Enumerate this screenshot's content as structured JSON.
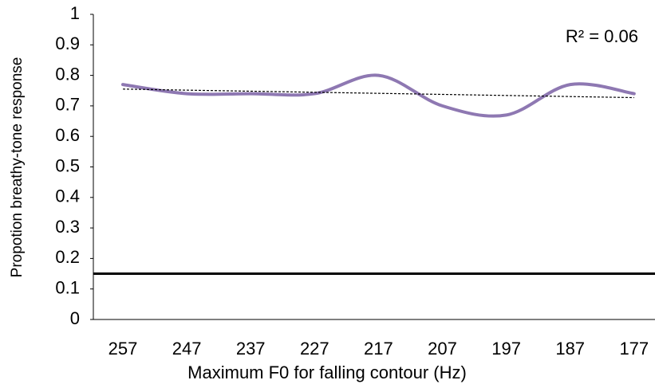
{
  "chart_data": {
    "type": "line",
    "categories": [
      "257",
      "247",
      "237",
      "227",
      "217",
      "207",
      "197",
      "187",
      "177"
    ],
    "series": [
      {
        "name": "Propotion breathy-tone response",
        "color": "#8e78b2",
        "values": [
          0.77,
          0.74,
          0.74,
          0.74,
          0.8,
          0.7,
          0.67,
          0.77,
          0.74
        ]
      }
    ],
    "x_label": "Maximum F0 for falling contour (Hz)",
    "y_label": "Propotion breathy-tone response",
    "ylim": [
      0,
      1
    ],
    "yticks": [
      0,
      0.1,
      0.2,
      0.3,
      0.4,
      0.5,
      0.6,
      0.7,
      0.8,
      0.9,
      1
    ],
    "trendline": "linear",
    "trendline_label": "R² = 0.06",
    "reference_line": 0.15,
    "smooth": true
  }
}
